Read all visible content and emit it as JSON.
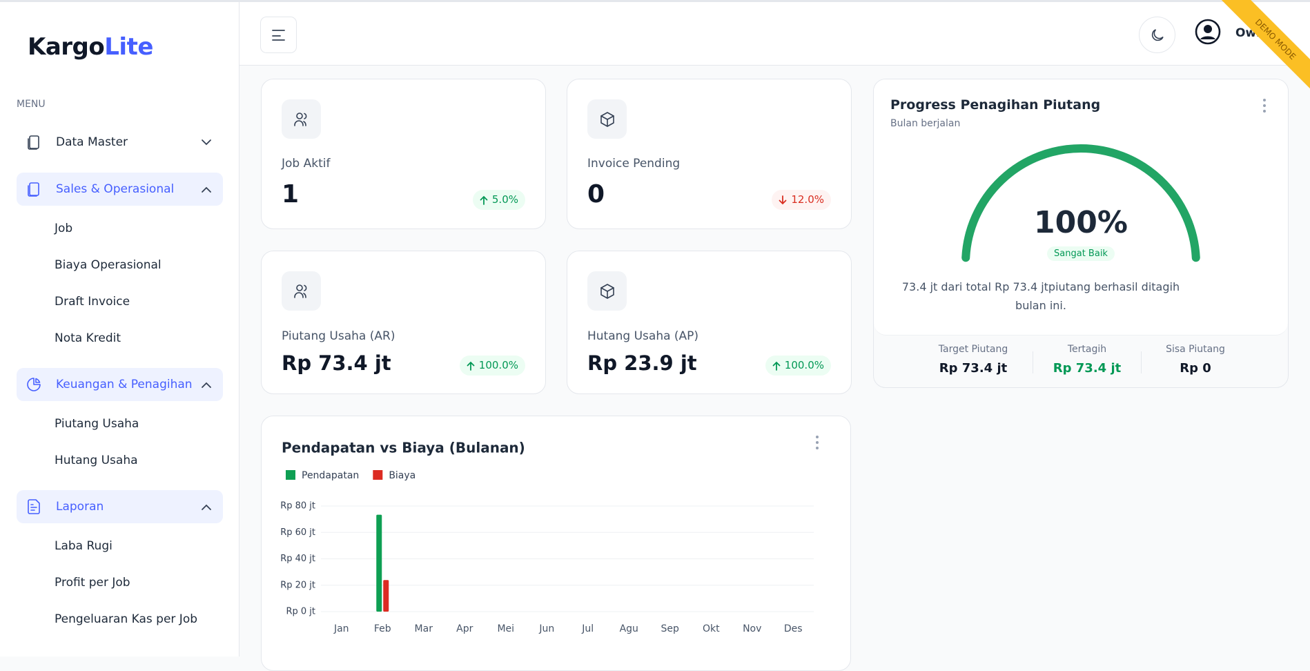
{
  "sidebar": {
    "brand_primary": "Kargo",
    "brand_accent": "Lite",
    "menu_label": "MENU",
    "groups": [
      {
        "label": "Data Master",
        "expanded": false,
        "items": []
      },
      {
        "label": "Sales & Operasional",
        "expanded": true,
        "items": [
          "Job",
          "Biaya Operasional",
          "Draft Invoice",
          "Nota Kredit"
        ]
      },
      {
        "label": "Keuangan & Penagihan",
        "expanded": true,
        "items": [
          "Piutang Usaha",
          "Hutang Usaha"
        ]
      },
      {
        "label": "Laporan",
        "expanded": true,
        "items": [
          "Laba Rugi",
          "Profit per Job",
          "Pengeluaran Kas per Job"
        ]
      }
    ]
  },
  "header": {
    "user": "Owner",
    "ribbon": "DEMO MODE"
  },
  "stats": [
    {
      "label": "Job Aktif",
      "value": "1",
      "change": "5.0%",
      "direction": "up"
    },
    {
      "label": "Invoice Pending",
      "value": "0",
      "change": "12.0%",
      "direction": "down"
    },
    {
      "label": "Piutang Usaha (AR)",
      "value": "Rp 73.4 jt",
      "change": "100.0%",
      "direction": "up"
    },
    {
      "label": "Hutang Usaha (AP)",
      "value": "Rp 23.9 jt",
      "change": "100.0%",
      "direction": "up"
    }
  ],
  "collection": {
    "title": "Progress Penagihan Piutang",
    "subtitle": "Bulan berjalan",
    "status": "Sangat Baik",
    "note": "73.4 jt dari total Rp 73.4 jtpiutang berhasil ditagih bulan ini.",
    "summary": [
      {
        "label": "Target Piutang",
        "value": "Rp 73.4 jt"
      },
      {
        "label": "Tertagih",
        "value": "Rp 73.4 jt"
      },
      {
        "label": "Sisa Piutang",
        "value": "Rp 0"
      }
    ]
  },
  "chart_data": [
    {
      "type": "bar",
      "title": "Pendapatan vs Biaya (Bulanan)",
      "categories": [
        "Jan",
        "Feb",
        "Mar",
        "Apr",
        "Mei",
        "Jun",
        "Jul",
        "Agu",
        "Sep",
        "Okt",
        "Nov",
        "Des"
      ],
      "series": [
        {
          "name": "Pendapatan",
          "color": "#0e9f53",
          "values": [
            0,
            73.4,
            0,
            0,
            0,
            0,
            0,
            0,
            0,
            0,
            0,
            0
          ]
        },
        {
          "name": "Biaya",
          "color": "#dc2b22",
          "values": [
            0,
            23.9,
            0,
            0,
            0,
            0,
            0,
            0,
            0,
            0,
            0,
            0
          ]
        }
      ],
      "ylim": [
        0,
        80
      ],
      "yticks": [
        {
          "value": 0,
          "label": "Rp 0 jt"
        },
        {
          "value": 20,
          "label": "Rp 20 jt"
        },
        {
          "value": 40,
          "label": "Rp 40 jt"
        },
        {
          "value": 60,
          "label": "Rp 60 jt"
        },
        {
          "value": 80,
          "label": "Rp 80 jt"
        }
      ],
      "grid": true,
      "legend": "top-left"
    },
    {
      "type": "gauge",
      "value": 100,
      "value_label": "100%",
      "ylim": [
        0,
        100
      ],
      "color": "#22a565"
    }
  ]
}
